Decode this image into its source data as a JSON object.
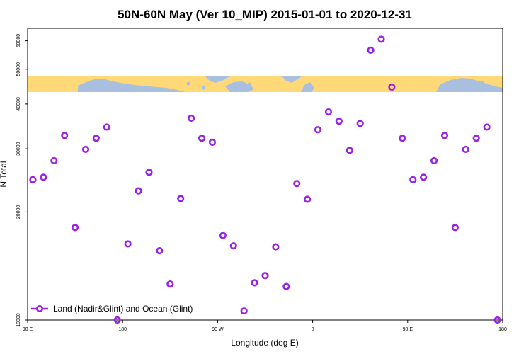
{
  "chart_data": {
    "type": "scatter",
    "title": "50N-60N May (Ver 10_MIP)   2015-01-01 to 2020-12-31",
    "xlabel": "Longitude (deg E)",
    "ylabel": "N Total",
    "y_scale": "log",
    "ylim": [
      10000,
      65000
    ],
    "xlim": [
      90,
      540
    ],
    "x_ticks": [
      {
        "value": 90,
        "label": "90 E"
      },
      {
        "value": 180,
        "label": "180"
      },
      {
        "value": 270,
        "label": "90 W"
      },
      {
        "value": 360,
        "label": "0"
      },
      {
        "value": 450,
        "label": "90 E"
      },
      {
        "value": 540,
        "label": "180"
      }
    ],
    "y_ticks": [
      {
        "value": 10000,
        "label": "10000"
      },
      {
        "value": 20000,
        "label": "20000"
      },
      {
        "value": 30000,
        "label": "30000"
      },
      {
        "value": 40000,
        "label": "40000"
      },
      {
        "value": 50000,
        "label": "50000"
      },
      {
        "value": 60000,
        "label": "60000"
      }
    ],
    "map_strip": {
      "lat_range": "50N-60N",
      "land_color": "#ffd978",
      "ocean_color": "#a9bfdf"
    },
    "grid": false,
    "legend_position": "bottom-left",
    "series": [
      {
        "name": "Land (Nadir&Glint) and Ocean (Glint)",
        "color": "#9a22e6",
        "marker": "open-circle",
        "points": [
          {
            "x": 95,
            "y": 24600
          },
          {
            "x": 105,
            "y": 25000
          },
          {
            "x": 115,
            "y": 27800
          },
          {
            "x": 125,
            "y": 32700
          },
          {
            "x": 135,
            "y": 18100
          },
          {
            "x": 145,
            "y": 29900
          },
          {
            "x": 155,
            "y": 32100
          },
          {
            "x": 165,
            "y": 34500
          },
          {
            "x": 175,
            "y": 10000
          },
          {
            "x": 185,
            "y": 16300
          },
          {
            "x": 195,
            "y": 22900
          },
          {
            "x": 205,
            "y": 25800
          },
          {
            "x": 215,
            "y": 15600
          },
          {
            "x": 225,
            "y": 12600
          },
          {
            "x": 235,
            "y": 21800
          },
          {
            "x": 245,
            "y": 36500
          },
          {
            "x": 255,
            "y": 32100
          },
          {
            "x": 265,
            "y": 31300
          },
          {
            "x": 275,
            "y": 17200
          },
          {
            "x": 285,
            "y": 16100
          },
          {
            "x": 295,
            "y": 10600
          },
          {
            "x": 305,
            "y": 12700
          },
          {
            "x": 315,
            "y": 13300
          },
          {
            "x": 325,
            "y": 16000
          },
          {
            "x": 335,
            "y": 12400
          },
          {
            "x": 345,
            "y": 24000
          },
          {
            "x": 355,
            "y": 21700
          },
          {
            "x": 365,
            "y": 33900
          },
          {
            "x": 375,
            "y": 38000
          },
          {
            "x": 385,
            "y": 35800
          },
          {
            "x": 395,
            "y": 29700
          },
          {
            "x": 405,
            "y": 35300
          },
          {
            "x": 415,
            "y": 56500
          },
          {
            "x": 425,
            "y": 60600
          },
          {
            "x": 435,
            "y": 44600
          },
          {
            "x": 445,
            "y": 32100
          },
          {
            "x": 455,
            "y": 24600
          },
          {
            "x": 465,
            "y": 25000
          },
          {
            "x": 475,
            "y": 27800
          },
          {
            "x": 485,
            "y": 32700
          },
          {
            "x": 495,
            "y": 18100
          },
          {
            "x": 505,
            "y": 29900
          },
          {
            "x": 515,
            "y": 32100
          },
          {
            "x": 525,
            "y": 34500
          },
          {
            "x": 535,
            "y": 10000
          }
        ]
      }
    ]
  }
}
